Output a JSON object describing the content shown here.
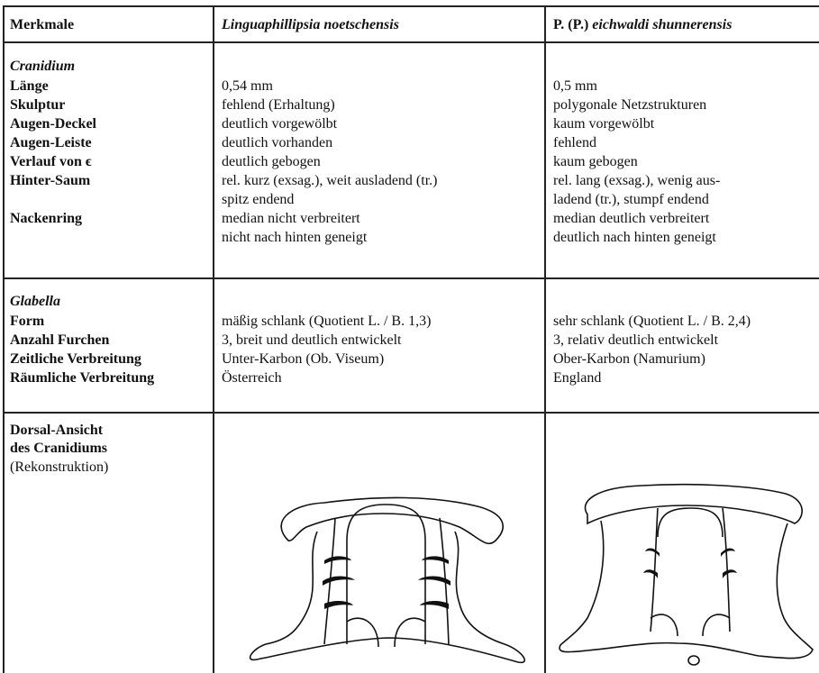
{
  "header": {
    "col0": "Merkmale",
    "col1": "Linguaphillipsia noetschensis",
    "col2_prefix": "P. (P.)",
    "col2_name": "eichwaldi shunnerensis"
  },
  "sections": [
    {
      "title": "Cranidium",
      "rows": [
        {
          "label": "Länge",
          "a": [
            "0,54 mm"
          ],
          "b": [
            "0,5 mm"
          ]
        },
        {
          "label": "Skulptur",
          "a": [
            "fehlend (Erhaltung)"
          ],
          "b": [
            "polygonale Netzstrukturen"
          ]
        },
        {
          "label": "Augen-Deckel",
          "a": [
            "deutlich vorgewölbt"
          ],
          "b": [
            "kaum vorgewölbt"
          ]
        },
        {
          "label": "Augen-Leiste",
          "a": [
            "deutlich vorhanden"
          ],
          "b": [
            "fehlend"
          ]
        },
        {
          "label": "Verlauf von ϵ",
          "a": [
            "deutlich gebogen"
          ],
          "b": [
            "kaum gebogen"
          ]
        },
        {
          "label": "Hinter-Saum",
          "a": [
            "rel. kurz (exsag.), weit ausladend (tr.)",
            "spitz endend"
          ],
          "b": [
            "rel. lang (exsag.), wenig aus-",
            "ladend (tr.), stumpf endend"
          ]
        },
        {
          "label": "Nackenring",
          "a": [
            "median nicht verbreitert",
            "nicht nach hinten geneigt"
          ],
          "b": [
            "median deutlich verbreitert",
            "deutlich nach hinten geneigt"
          ]
        }
      ]
    },
    {
      "title": "Glabella",
      "rows": [
        {
          "label": "Form",
          "a": [
            "mäßig schlank (Quotient L. / B. 1,3)"
          ],
          "b": [
            "sehr schlank (Quotient L. / B. 2,4)"
          ]
        },
        {
          "label": "Anzahl Furchen",
          "a": [
            "3, breit und deutlich entwickelt"
          ],
          "b": [
            "3, relativ deutlich entwickelt"
          ]
        },
        {
          "label": "Zeitliche Verbreitung",
          "a": [
            "Unter-Karbon (Ob. Viseum)"
          ],
          "b": [
            "Ober-Karbon (Namurium)"
          ]
        },
        {
          "label": "Räumliche Verbreitung",
          "a": [
            "Österreich"
          ],
          "b": [
            "England"
          ]
        }
      ]
    }
  ],
  "figure_row": {
    "label_line1": "Dorsal-Ansicht",
    "label_line2": "des Cranidiums",
    "label_note": "(Rekonstruktion)"
  }
}
